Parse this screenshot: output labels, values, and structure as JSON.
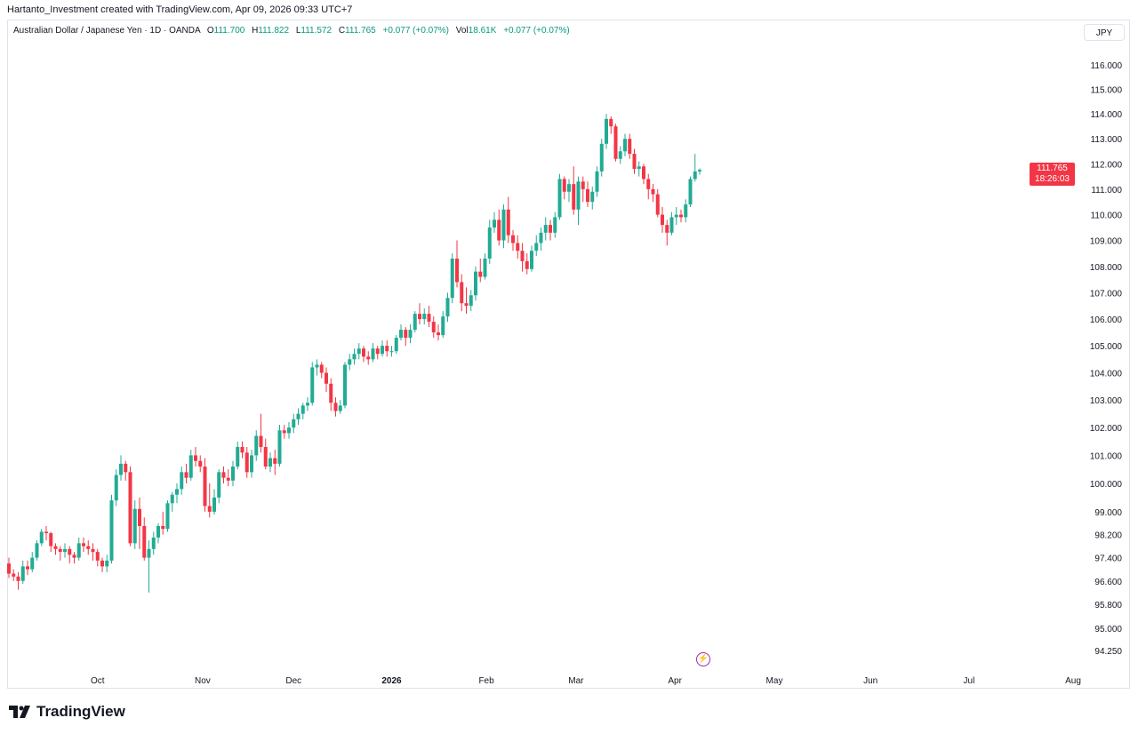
{
  "credit": "Hartanto_Investment created with TradingView.com, Apr 09, 2026 09:33 UTC+7",
  "legend": {
    "symbol": "Australian Dollar / Japanese Yen · 1D · OANDA",
    "o_label": "O",
    "o": "111.700",
    "h_label": "H",
    "h": "111.822",
    "l_label": "L",
    "l": "111.572",
    "c_label": "C",
    "c": "111.765",
    "change": "+0.077 (+0.07%)",
    "vol_label": "Vol",
    "vol": "18.61K",
    "vol_change": "+0.077 (+0.07%)"
  },
  "currency": "JPY",
  "price_tag": {
    "price": "111.765",
    "countdown": "18:26:03"
  },
  "brand": "TradingView",
  "colors": {
    "up": "#22ab94",
    "down": "#f23645",
    "accent": "#089981",
    "tag": "#f23645",
    "event": "#9c27b0"
  },
  "icons": {
    "event": "lightning-icon",
    "logo": "tradingview-logo"
  },
  "chart_data": {
    "type": "candlestick",
    "title": "Australian Dollar / Japanese Yen · 1D · OANDA",
    "yscale": "log",
    "ylim": [
      93.0,
      117.0
    ],
    "grid": false,
    "y_ticks": [
      {
        "value": 116.0,
        "label": "116.000"
      },
      {
        "value": 115.0,
        "label": "115.000"
      },
      {
        "value": 114.0,
        "label": "114.000"
      },
      {
        "value": 113.0,
        "label": "113.000"
      },
      {
        "value": 112.0,
        "label": "112.000"
      },
      {
        "value": 111.0,
        "label": "111.000"
      },
      {
        "value": 110.0,
        "label": "110.000"
      },
      {
        "value": 109.0,
        "label": "109.000"
      },
      {
        "value": 108.0,
        "label": "108.000"
      },
      {
        "value": 107.0,
        "label": "107.000"
      },
      {
        "value": 106.0,
        "label": "106.000"
      },
      {
        "value": 105.0,
        "label": "105.000"
      },
      {
        "value": 104.0,
        "label": "104.000"
      },
      {
        "value": 103.0,
        "label": "103.000"
      },
      {
        "value": 102.0,
        "label": "102.000"
      },
      {
        "value": 101.0,
        "label": "101.000"
      },
      {
        "value": 100.0,
        "label": "100.000"
      },
      {
        "value": 99.0,
        "label": "99.000"
      },
      {
        "value": 98.2,
        "label": "98.200"
      },
      {
        "value": 97.4,
        "label": "97.400"
      },
      {
        "value": 96.6,
        "label": "96.600"
      },
      {
        "value": 95.8,
        "label": "95.800"
      },
      {
        "value": 95.0,
        "label": "95.000"
      },
      {
        "value": 94.25,
        "label": "94.250"
      }
    ],
    "x_ticks": [
      {
        "label": "Oct",
        "bar": 19
      },
      {
        "label": "Nov",
        "bar": 41.5
      },
      {
        "label": "Dec",
        "bar": 61
      },
      {
        "label": "2026",
        "bar": 82,
        "bold": true
      },
      {
        "label": "Feb",
        "bar": 102.3
      },
      {
        "label": "Mar",
        "bar": 121.5
      },
      {
        "label": "Apr",
        "bar": 142.7
      },
      {
        "label": "May",
        "bar": 164
      },
      {
        "label": "Jun",
        "bar": 184.6
      },
      {
        "label": "Jul",
        "bar": 205.7
      },
      {
        "label": "Aug",
        "bar": 228
      }
    ],
    "last_price": 111.765,
    "candles_ohlc": [
      [
        97.2,
        97.4,
        96.7,
        96.85
      ],
      [
        96.85,
        97.0,
        96.6,
        96.75
      ],
      [
        96.75,
        96.9,
        96.3,
        96.6
      ],
      [
        96.6,
        97.3,
        96.5,
        97.1
      ],
      [
        97.1,
        97.3,
        96.8,
        97.0
      ],
      [
        97.0,
        97.6,
        96.9,
        97.4
      ],
      [
        97.4,
        98.0,
        97.3,
        97.9
      ],
      [
        97.9,
        98.4,
        97.8,
        98.3
      ],
      [
        98.3,
        98.5,
        98.0,
        98.25
      ],
      [
        98.25,
        98.3,
        97.6,
        97.8
      ],
      [
        97.8,
        97.9,
        97.5,
        97.7
      ],
      [
        97.7,
        97.8,
        97.3,
        97.6
      ],
      [
        97.6,
        97.9,
        97.4,
        97.7
      ],
      [
        97.7,
        97.8,
        97.2,
        97.5
      ],
      [
        97.5,
        97.6,
        97.2,
        97.4
      ],
      [
        97.4,
        98.1,
        97.3,
        97.9
      ],
      [
        97.9,
        98.1,
        97.6,
        97.8
      ],
      [
        97.8,
        98.0,
        97.5,
        97.7
      ],
      [
        97.7,
        97.9,
        97.3,
        97.6
      ],
      [
        97.6,
        97.7,
        97.1,
        97.3
      ],
      [
        97.3,
        97.4,
        96.9,
        97.1
      ],
      [
        97.1,
        97.5,
        96.9,
        97.3
      ],
      [
        97.3,
        99.6,
        97.2,
        99.4
      ],
      [
        99.4,
        100.5,
        99.2,
        100.3
      ],
      [
        100.3,
        101.0,
        100.1,
        100.7
      ],
      [
        100.7,
        100.8,
        100.1,
        100.4
      ],
      [
        100.4,
        100.6,
        97.8,
        97.9
      ],
      [
        97.9,
        99.4,
        97.7,
        99.1
      ],
      [
        99.1,
        99.5,
        97.7,
        98.5
      ],
      [
        98.5,
        98.8,
        97.3,
        97.4
      ],
      [
        97.4,
        98.0,
        96.2,
        97.7
      ],
      [
        97.7,
        98.3,
        97.5,
        98.1
      ],
      [
        98.1,
        98.6,
        97.9,
        98.5
      ],
      [
        98.5,
        99.0,
        98.2,
        98.4
      ],
      [
        98.4,
        99.4,
        98.3,
        99.3
      ],
      [
        99.3,
        99.7,
        99.0,
        99.6
      ],
      [
        99.6,
        100.0,
        99.3,
        99.8
      ],
      [
        99.8,
        100.6,
        99.6,
        100.4
      ],
      [
        100.4,
        100.7,
        100.0,
        100.2
      ],
      [
        100.2,
        101.2,
        100.1,
        101.0
      ],
      [
        101.0,
        101.3,
        100.6,
        100.8
      ],
      [
        100.8,
        101.0,
        100.4,
        100.6
      ],
      [
        100.6,
        100.9,
        99.0,
        99.2
      ],
      [
        99.2,
        100.0,
        98.8,
        99.0
      ],
      [
        99.0,
        99.8,
        98.9,
        99.5
      ],
      [
        99.5,
        100.5,
        99.3,
        100.4
      ],
      [
        100.4,
        100.6,
        100.0,
        100.2
      ],
      [
        100.2,
        100.5,
        99.9,
        100.1
      ],
      [
        100.1,
        100.8,
        99.9,
        100.6
      ],
      [
        100.6,
        101.5,
        100.5,
        101.3
      ],
      [
        101.3,
        101.5,
        100.9,
        101.1
      ],
      [
        101.1,
        101.3,
        100.2,
        100.4
      ],
      [
        100.4,
        101.2,
        100.2,
        101.0
      ],
      [
        101.0,
        101.9,
        100.8,
        101.7
      ],
      [
        101.7,
        102.5,
        101.1,
        101.3
      ],
      [
        101.3,
        101.6,
        100.5,
        100.6
      ],
      [
        100.6,
        101.1,
        100.4,
        100.9
      ],
      [
        100.9,
        101.2,
        100.3,
        100.7
      ],
      [
        100.7,
        102.1,
        100.6,
        101.9
      ],
      [
        101.9,
        102.1,
        101.6,
        101.8
      ],
      [
        101.8,
        102.2,
        101.6,
        102.0
      ],
      [
        102.0,
        102.5,
        101.8,
        102.3
      ],
      [
        102.3,
        102.7,
        102.1,
        102.5
      ],
      [
        102.5,
        102.9,
        102.3,
        102.8
      ],
      [
        102.8,
        103.1,
        102.6,
        102.9
      ],
      [
        102.9,
        104.4,
        102.8,
        104.2
      ],
      [
        104.2,
        104.5,
        103.9,
        104.3
      ],
      [
        104.3,
        104.4,
        103.8,
        104.0
      ],
      [
        104.0,
        104.2,
        103.3,
        103.6
      ],
      [
        103.6,
        103.8,
        102.6,
        102.9
      ],
      [
        102.9,
        103.1,
        102.4,
        102.6
      ],
      [
        102.6,
        103.0,
        102.5,
        102.8
      ],
      [
        102.8,
        104.4,
        102.7,
        104.3
      ],
      [
        104.3,
        104.7,
        104.1,
        104.5
      ],
      [
        104.5,
        104.9,
        104.3,
        104.7
      ],
      [
        104.7,
        105.1,
        104.5,
        104.9
      ],
      [
        104.9,
        105.0,
        104.4,
        104.6
      ],
      [
        104.6,
        104.8,
        104.3,
        104.5
      ],
      [
        104.5,
        105.1,
        104.4,
        104.9
      ],
      [
        104.9,
        105.0,
        104.5,
        104.7
      ],
      [
        104.7,
        105.2,
        104.6,
        105.0
      ],
      [
        105.0,
        105.2,
        104.6,
        104.8
      ],
      [
        104.8,
        105.0,
        104.6,
        104.8
      ],
      [
        104.8,
        105.4,
        104.7,
        105.3
      ],
      [
        105.3,
        105.8,
        105.2,
        105.6
      ],
      [
        105.6,
        105.7,
        105.0,
        105.3
      ],
      [
        105.3,
        105.8,
        105.1,
        105.6
      ],
      [
        105.6,
        106.3,
        105.5,
        106.2
      ],
      [
        106.2,
        106.6,
        105.8,
        106.0
      ],
      [
        106.0,
        106.4,
        105.8,
        106.2
      ],
      [
        106.2,
        106.5,
        105.7,
        105.9
      ],
      [
        105.9,
        106.1,
        105.3,
        105.5
      ],
      [
        105.5,
        105.8,
        105.2,
        105.4
      ],
      [
        105.4,
        106.3,
        105.3,
        106.1
      ],
      [
        106.1,
        107.0,
        105.9,
        106.8
      ],
      [
        106.8,
        108.5,
        106.6,
        108.3
      ],
      [
        108.3,
        109.0,
        107.2,
        107.4
      ],
      [
        107.4,
        107.7,
        106.3,
        106.6
      ],
      [
        106.6,
        107.2,
        106.2,
        106.5
      ],
      [
        106.5,
        107.1,
        106.3,
        106.9
      ],
      [
        106.9,
        108.0,
        106.7,
        107.8
      ],
      [
        107.8,
        108.3,
        107.4,
        107.6
      ],
      [
        107.6,
        108.5,
        107.5,
        108.3
      ],
      [
        108.3,
        109.8,
        108.1,
        109.5
      ],
      [
        109.5,
        110.1,
        109.3,
        109.8
      ],
      [
        109.8,
        110.2,
        108.8,
        109.0
      ],
      [
        109.0,
        110.4,
        108.7,
        110.2
      ],
      [
        110.2,
        110.7,
        108.9,
        109.2
      ],
      [
        109.2,
        109.4,
        108.6,
        108.9
      ],
      [
        108.9,
        109.2,
        108.3,
        108.6
      ],
      [
        108.6,
        108.9,
        107.8,
        108.2
      ],
      [
        108.2,
        108.5,
        107.7,
        107.9
      ],
      [
        107.9,
        108.8,
        107.8,
        108.6
      ],
      [
        108.6,
        109.2,
        108.4,
        108.9
      ],
      [
        108.9,
        109.5,
        108.6,
        109.3
      ],
      [
        109.3,
        109.9,
        109.0,
        109.6
      ],
      [
        109.6,
        109.8,
        109.0,
        109.3
      ],
      [
        109.3,
        110.1,
        109.1,
        109.9
      ],
      [
        109.9,
        111.6,
        109.8,
        111.4
      ],
      [
        111.4,
        111.5,
        110.6,
        110.9
      ],
      [
        110.9,
        111.4,
        110.5,
        111.2
      ],
      [
        111.2,
        111.9,
        110.0,
        110.2
      ],
      [
        110.2,
        111.5,
        109.6,
        111.3
      ],
      [
        111.3,
        111.5,
        110.5,
        111.0
      ],
      [
        111.0,
        111.3,
        110.3,
        110.5
      ],
      [
        110.5,
        111.1,
        110.2,
        110.9
      ],
      [
        110.9,
        111.9,
        110.7,
        111.7
      ],
      [
        111.7,
        113.0,
        111.5,
        112.8
      ],
      [
        112.8,
        114.0,
        112.6,
        113.8
      ],
      [
        113.8,
        113.9,
        113.2,
        113.5
      ],
      [
        113.5,
        113.6,
        112.1,
        112.2
      ],
      [
        112.2,
        112.7,
        112.0,
        112.5
      ],
      [
        112.5,
        113.2,
        112.3,
        113.0
      ],
      [
        113.0,
        113.2,
        112.2,
        112.4
      ],
      [
        112.4,
        112.6,
        111.6,
        111.8
      ],
      [
        111.8,
        112.1,
        111.5,
        111.9
      ],
      [
        111.9,
        112.0,
        111.2,
        111.4
      ],
      [
        111.4,
        111.6,
        110.6,
        111.0
      ],
      [
        111.0,
        111.2,
        110.5,
        110.8
      ],
      [
        110.8,
        111.0,
        109.9,
        110.0
      ],
      [
        110.0,
        110.3,
        109.3,
        109.6
      ],
      [
        109.6,
        109.8,
        108.8,
        109.3
      ],
      [
        109.3,
        110.1,
        109.2,
        109.9
      ],
      [
        109.9,
        110.3,
        109.6,
        110.0
      ],
      [
        110.0,
        110.2,
        109.7,
        109.9
      ],
      [
        109.9,
        110.6,
        109.7,
        110.4
      ],
      [
        110.4,
        111.5,
        110.3,
        111.4
      ],
      [
        111.4,
        112.4,
        111.3,
        111.7
      ],
      [
        111.7,
        111.822,
        111.572,
        111.765
      ]
    ]
  }
}
